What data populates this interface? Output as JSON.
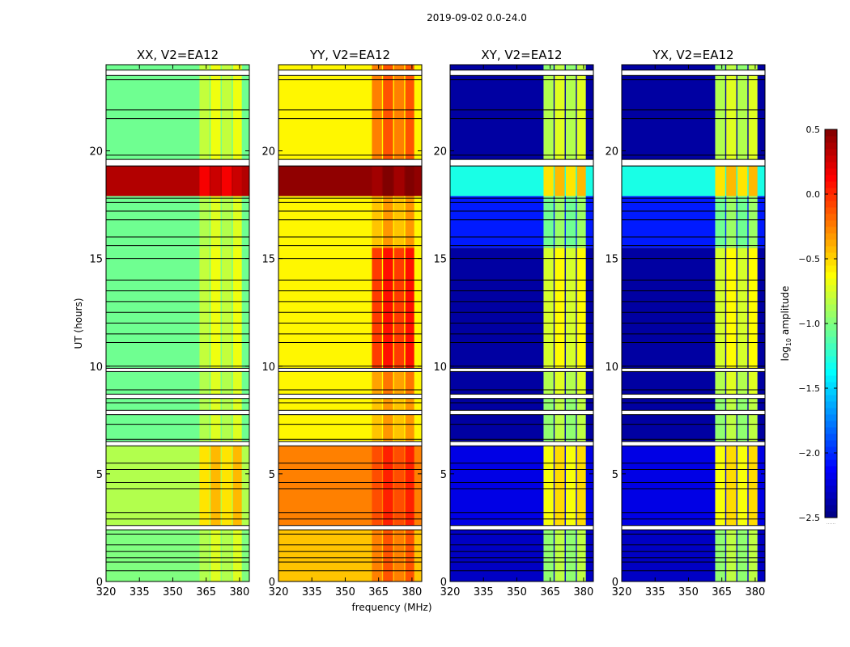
{
  "chart_data": {
    "type": "heatmap",
    "title": "2019-09-02 0.0-24.0",
    "xlabel": "frequency (MHz)",
    "ylabel": "UT (hours)",
    "xlim": [
      320,
      384.4
    ],
    "ylim": [
      0,
      24
    ],
    "xticks": [
      320,
      335,
      350,
      365,
      380
    ],
    "yticks": [
      0,
      5,
      10,
      15,
      20
    ],
    "colormap": "jet",
    "colorbar": {
      "label_prefix": "log",
      "label_sub": "10",
      "label_suffix": " amplitude",
      "range": [
        -2.5,
        0.5
      ],
      "ticks": [
        0.5,
        0.0,
        -0.5,
        -1.0,
        -1.5,
        -2.0,
        -2.5
      ],
      "tick_labels": [
        "0.5",
        "0.0",
        "−0.5",
        "−1.0",
        "−1.5",
        "−2.0",
        "−2.5"
      ],
      "extra": "......"
    },
    "time_segments": [
      [
        0,
        2.4
      ],
      [
        2.6,
        6.3
      ],
      [
        6.5,
        7.75
      ],
      [
        7.95,
        8.5
      ],
      [
        8.7,
        9.75
      ],
      [
        9.9,
        15.5
      ],
      [
        15.5,
        17.9
      ],
      [
        17.9,
        19.3
      ],
      [
        19.6,
        23.5
      ],
      [
        23.75,
        24
      ]
    ],
    "rfi_bands_mhz": [
      [
        362,
        366.5
      ],
      [
        367,
        371.5
      ],
      [
        372,
        376.5
      ],
      [
        377,
        381
      ]
    ],
    "flagged_hours": [
      [
        2.4,
        2.6
      ],
      [
        6.3,
        6.5
      ],
      [
        7.75,
        7.95
      ],
      [
        8.5,
        8.7
      ],
      [
        9.75,
        9.9
      ],
      [
        19.3,
        19.6
      ],
      [
        23.5,
        23.75
      ]
    ],
    "scan_boundaries_hours": [
      0.5,
      0.9,
      1.1,
      1.4,
      1.7,
      2.2,
      2.9,
      3.2,
      4.3,
      4.6,
      5.2,
      5.5,
      6.6,
      7.3,
      8.3,
      8.9,
      10.0,
      11.1,
      11.5,
      12.0,
      12.5,
      13.0,
      13.5,
      14.0,
      15.0,
      15.6,
      16.0,
      16.8,
      17.2,
      17.6,
      17.8,
      19.3,
      19.8,
      21.5,
      21.9,
      23.3
    ],
    "panels": [
      {
        "title": "XX, V2=EA12",
        "base": [
          -1.0,
          -0.85,
          -1.05,
          -1.05,
          -1.05,
          -1.05,
          -1.05,
          0.35,
          -1.05,
          -1.05
        ],
        "band": [
          -0.8,
          -0.5,
          -0.8,
          -0.8,
          -0.8,
          -0.75,
          -0.8,
          0.2,
          -0.75,
          -0.75
        ]
      },
      {
        "title": "YY, V2=EA12",
        "base": [
          -0.45,
          -0.25,
          -0.6,
          -0.6,
          -0.6,
          -0.6,
          -0.6,
          0.45,
          -0.6,
          -0.6
        ],
        "band": [
          -0.2,
          -0.05,
          -0.4,
          -0.4,
          -0.3,
          0.0,
          -0.4,
          0.45,
          -0.2,
          -0.2
        ]
      },
      {
        "title": "XY, V2=EA12",
        "base": [
          -2.3,
          -2.2,
          -2.4,
          -2.4,
          -2.4,
          -2.4,
          -2.05,
          -1.3,
          -2.4,
          -2.4
        ],
        "band": [
          -0.9,
          -0.6,
          -0.9,
          -0.9,
          -0.8,
          -0.7,
          -1.0,
          -0.5,
          -0.8,
          -0.9
        ]
      },
      {
        "title": "YX, V2=EA12",
        "base": [
          -2.3,
          -2.2,
          -2.4,
          -2.4,
          -2.4,
          -2.4,
          -2.05,
          -1.3,
          -2.4,
          -2.4
        ],
        "band": [
          -0.9,
          -0.6,
          -0.9,
          -0.9,
          -0.8,
          -0.7,
          -1.0,
          -0.5,
          -0.8,
          -0.9
        ]
      }
    ]
  }
}
